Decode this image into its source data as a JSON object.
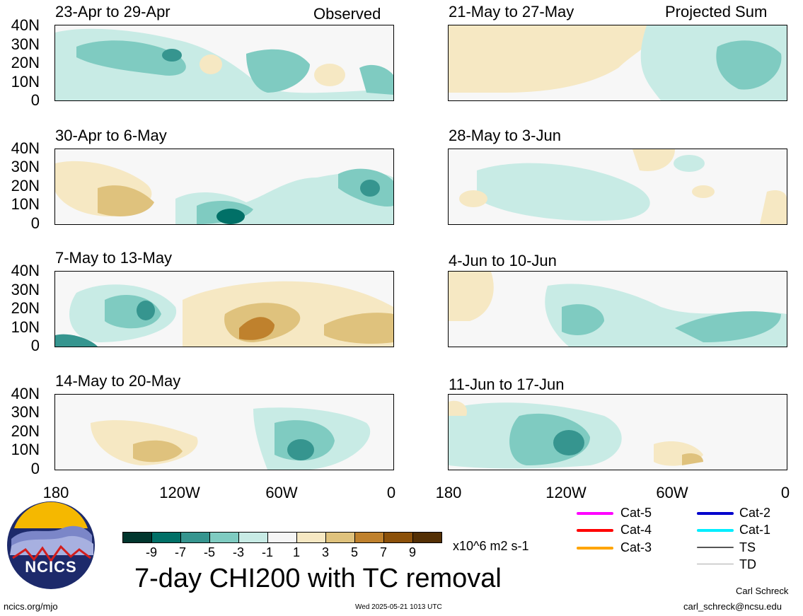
{
  "header": {
    "left_tag": "Observed",
    "right_tag": "Projected Sum"
  },
  "y_ticks": [
    "40N",
    "30N",
    "20N",
    "10N",
    "0"
  ],
  "x_ticks": [
    "180",
    "120W",
    "60W",
    "0"
  ],
  "panels": [
    {
      "title": "23-Apr to 29-Apr"
    },
    {
      "title": "30-Apr to 6-May"
    },
    {
      "title": "7-May to 13-May"
    },
    {
      "title": "14-May to 20-May"
    },
    {
      "title": "21-May to 27-May"
    },
    {
      "title": "28-May to 3-Jun"
    },
    {
      "title": "4-Jun to 10-Jun"
    },
    {
      "title": "11-Jun to 17-Jun"
    }
  ],
  "colorbar": {
    "colors": [
      "#01362e",
      "#017067",
      "#36958f",
      "#7fcbc1",
      "#c8ebe5",
      "#f5f5f5",
      "#f6e8c3",
      "#dfc27d",
      "#bf812d",
      "#8c510a",
      "#543005"
    ],
    "labels": [
      "-9",
      "-7",
      "-5",
      "-3",
      "-1",
      "1",
      "3",
      "5",
      "7",
      "9"
    ],
    "units": "x10^6 m2 s-1"
  },
  "main_title": "7-day CHI200 with TC removal",
  "legend": [
    {
      "label": "Cat-5",
      "color": "#ff00ff"
    },
    {
      "label": "Cat-4",
      "color": "#ff0000"
    },
    {
      "label": "Cat-3",
      "color": "#ffa500"
    },
    {
      "label": "Cat-2",
      "color": "#0000cc"
    },
    {
      "label": "Cat-1",
      "color": "#00eeff"
    },
    {
      "label": "TS",
      "color": "#555555"
    },
    {
      "label": "TD",
      "color": "#aaaaaa"
    }
  ],
  "logo": {
    "text": "NCICS"
  },
  "footer": {
    "left": "ncics.org/mjo",
    "center": "Wed 2025-05-21 1013 UTC",
    "author": "Carl Schreck",
    "email": "carl_schreck@ncsu.edu"
  }
}
